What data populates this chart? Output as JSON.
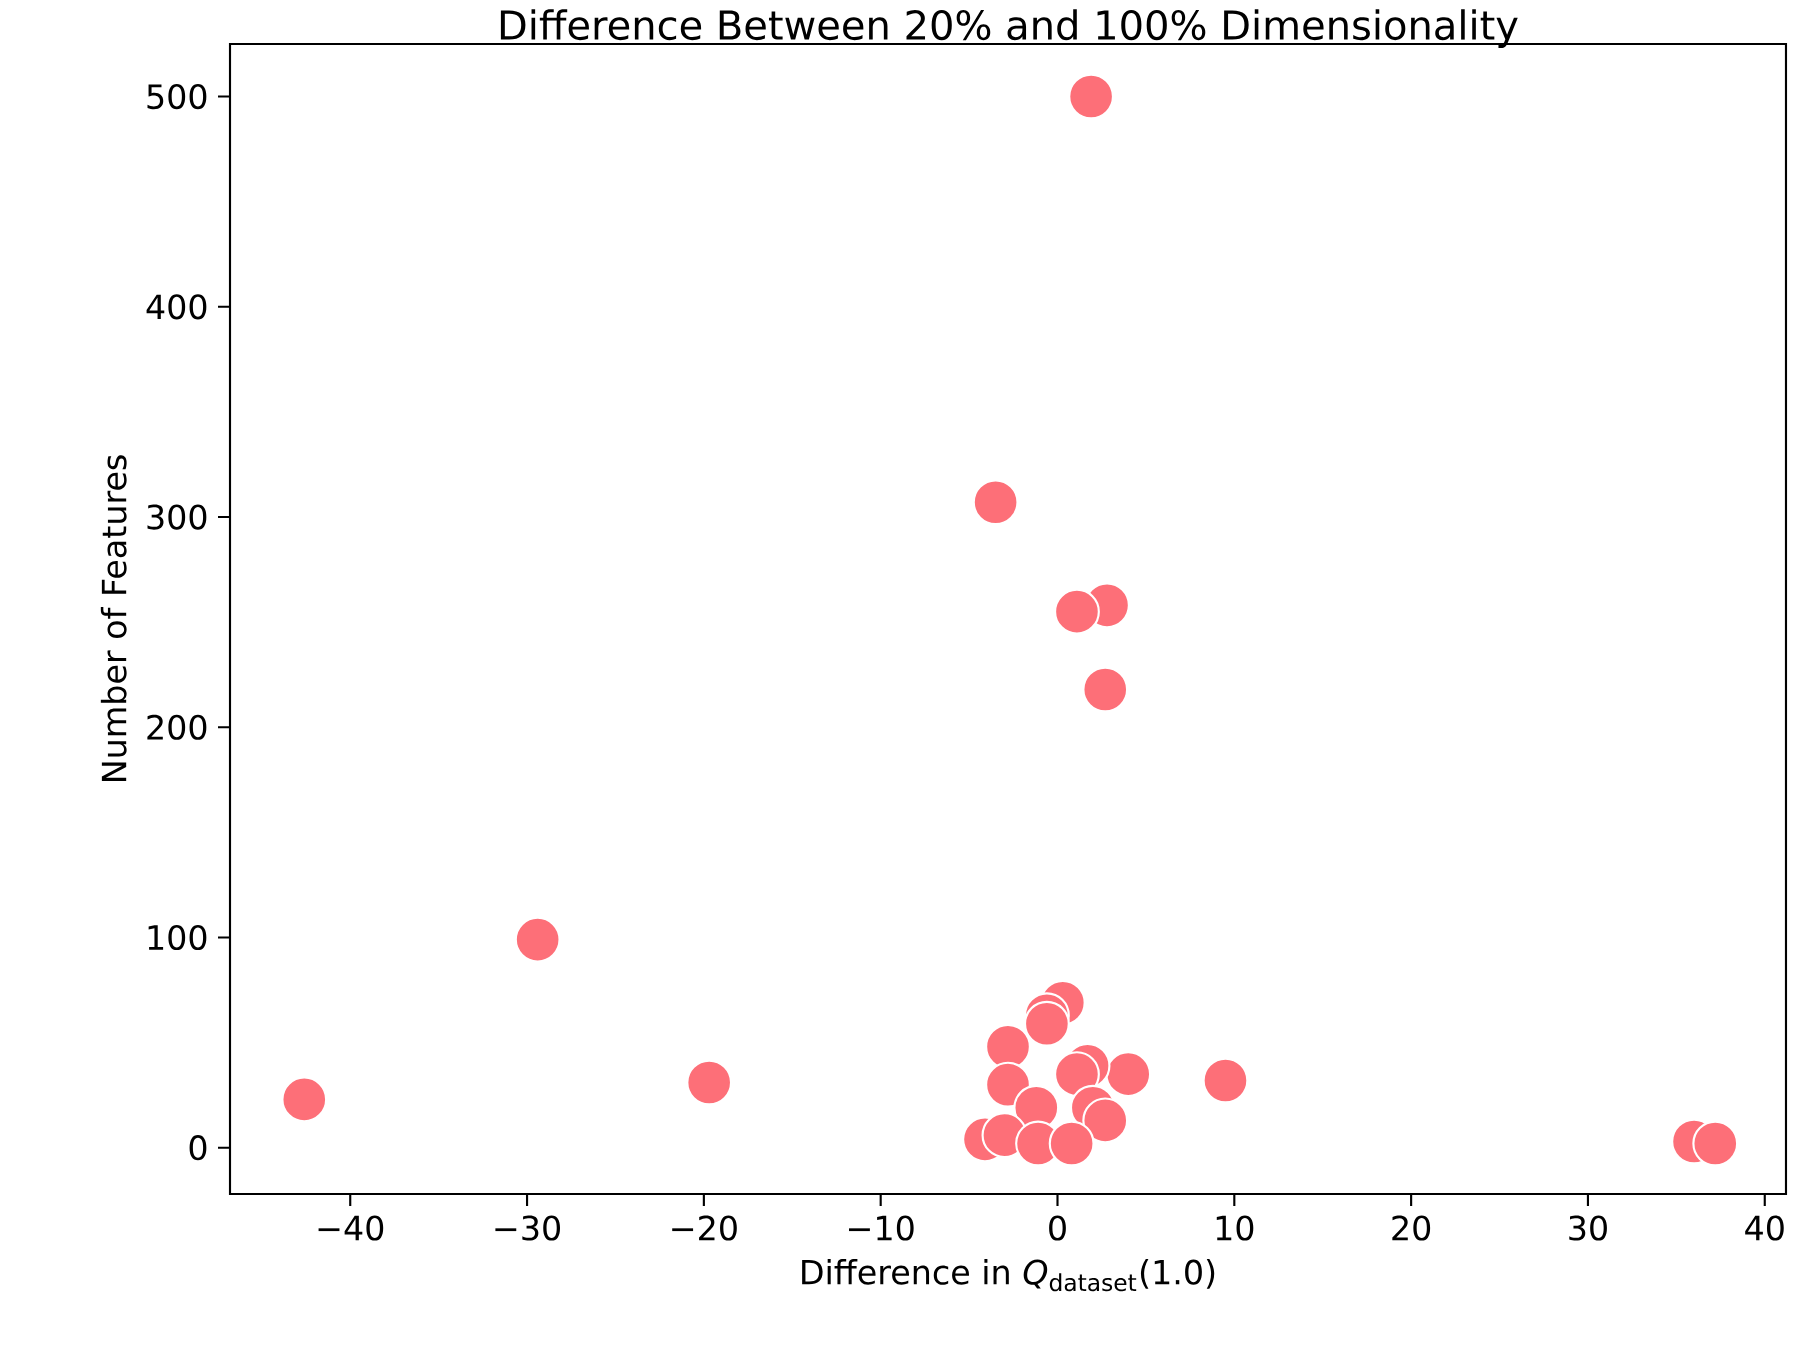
{
  "chart_data": {
    "type": "scatter",
    "title": "Difference Between 20% and 100% Dimensionality",
    "xlabel": "Difference in *Q*$_{dataset}$(1.0)",
    "ylabel": "Number of Features",
    "x": [
      1.9,
      -3.5,
      2.8,
      1.1,
      2.7,
      -29.4,
      -42.6,
      -19.7,
      9.5,
      36.0,
      37.2,
      0.3,
      -0.6,
      -0.6,
      -2.8,
      4.0,
      1.7,
      1.1,
      -2.8,
      -1.2,
      2.0,
      2.7,
      -4.1,
      -3.0,
      -1.1,
      0.8
    ],
    "values": [
      500,
      307,
      258,
      255,
      218,
      99,
      23,
      31,
      32,
      3,
      2,
      69,
      63,
      59,
      48,
      35,
      39,
      35,
      30,
      19,
      19,
      13,
      4,
      6,
      2,
      2
    ],
    "color": "#fd6f78",
    "xlim": [
      -46.8,
      41.2
    ],
    "ylim": [
      -22,
      525
    ],
    "xticks": [
      {
        "value": -40,
        "label": "−40"
      },
      {
        "value": -30,
        "label": "−30"
      },
      {
        "value": -20,
        "label": "−20"
      },
      {
        "value": -10,
        "label": "−10"
      },
      0,
      10,
      20,
      30,
      40
    ],
    "yticks": [
      0,
      100,
      200,
      300,
      400,
      500
    ],
    "grid": false
  }
}
